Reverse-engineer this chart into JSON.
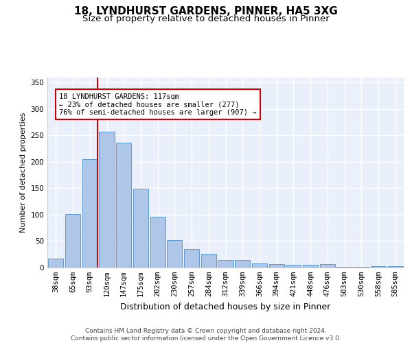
{
  "title_line1": "18, LYNDHURST GARDENS, PINNER, HA5 3XG",
  "title_line2": "Size of property relative to detached houses in Pinner",
  "xlabel": "Distribution of detached houses by size in Pinner",
  "ylabel": "Number of detached properties",
  "categories": [
    "38sqm",
    "65sqm",
    "93sqm",
    "120sqm",
    "147sqm",
    "175sqm",
    "202sqm",
    "230sqm",
    "257sqm",
    "284sqm",
    "312sqm",
    "339sqm",
    "366sqm",
    "394sqm",
    "421sqm",
    "448sqm",
    "476sqm",
    "503sqm",
    "530sqm",
    "558sqm",
    "585sqm"
  ],
  "values": [
    17,
    101,
    205,
    257,
    236,
    149,
    96,
    52,
    35,
    26,
    14,
    14,
    8,
    7,
    5,
    5,
    6,
    1,
    1,
    2,
    3
  ],
  "bar_color": "#aec6e8",
  "bar_edge_color": "#5b9bd5",
  "background_color": "#eaf0fb",
  "grid_color": "#ffffff",
  "vline_color": "#cc0000",
  "annotation_text": "18 LYNDHURST GARDENS: 117sqm\n← 23% of detached houses are smaller (277)\n76% of semi-detached houses are larger (907) →",
  "annotation_box_color": "#ffffff",
  "annotation_box_edge": "#cc0000",
  "footer_text": "Contains HM Land Registry data © Crown copyright and database right 2024.\nContains public sector information licensed under the Open Government Licence v3.0.",
  "ylim": [
    0,
    360
  ],
  "title_fontsize": 11,
  "subtitle_fontsize": 9.5,
  "xlabel_fontsize": 9,
  "ylabel_fontsize": 8,
  "tick_fontsize": 7.5,
  "footer_fontsize": 6.5,
  "ann_fontsize": 7.5
}
